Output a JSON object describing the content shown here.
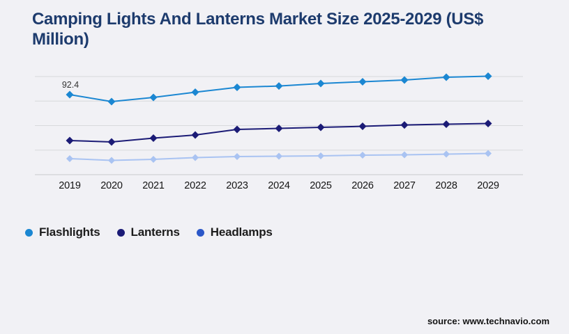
{
  "page": {
    "background_color": "#f1f1f5",
    "title_color": "#1d3b6d",
    "gridline_color": "#d8d9dc",
    "axis_color": "#c9cacd"
  },
  "chart_data": {
    "type": "line",
    "title": "Camping Lights And Lanterns Market Size 2025-2029 (US$ Million)",
    "x": [
      "2019",
      "2020",
      "2021",
      "2022",
      "2023",
      "2024",
      "2025",
      "2026",
      "2027",
      "2028",
      "2029"
    ],
    "xlabel": "",
    "ylabel": "",
    "ylim": [
      0,
      113.3
    ],
    "grid": "horizontal",
    "legend_position": "bottom-left",
    "marker": "diamond",
    "series": [
      {
        "name": "Flashlights",
        "color": "#1b87d2",
        "legend_color": "#1b87d2",
        "values": [
          92.4,
          84.4,
          89.2,
          95.2,
          100.8,
          102.4,
          105.3,
          107.3,
          109.3,
          112.5,
          113.7
        ],
        "data_labels": [
          {
            "index": 0,
            "text": "92.4"
          }
        ]
      },
      {
        "name": "Lanterns",
        "color": "#1b1b76",
        "legend_color": "#1b1b76",
        "values": [
          39.4,
          37.8,
          42.2,
          45.8,
          52.2,
          53.4,
          54.6,
          55.8,
          57.4,
          58.3,
          59.1
        ],
        "data_labels": []
      },
      {
        "name": "Headlamps",
        "color": "#a9c3f2",
        "legend_color": "#2b57c8",
        "values": [
          18.5,
          16.5,
          17.7,
          19.7,
          20.9,
          21.3,
          21.7,
          22.5,
          22.9,
          23.7,
          24.5
        ],
        "data_labels": []
      }
    ],
    "annotations": [
      "92.4"
    ]
  },
  "footer": {
    "source": "source: www.technavio.com"
  }
}
